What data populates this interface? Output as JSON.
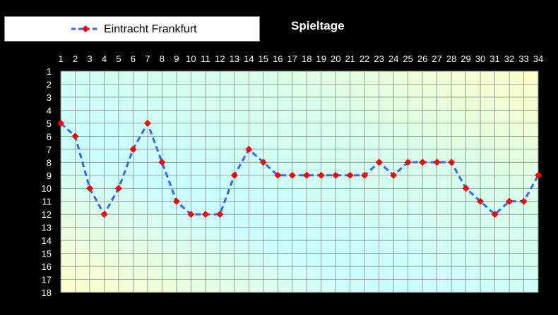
{
  "chart_data": {
    "type": "line",
    "title": "Spieltage",
    "legend_position": "top-left",
    "grid": true,
    "y_inverted": true,
    "xlim": [
      1,
      34
    ],
    "ylim": [
      1,
      18
    ],
    "x": [
      1,
      2,
      3,
      4,
      5,
      6,
      7,
      8,
      9,
      10,
      11,
      12,
      13,
      14,
      15,
      16,
      17,
      18,
      19,
      20,
      21,
      22,
      23,
      24,
      25,
      26,
      27,
      28,
      29,
      30,
      31,
      32,
      33,
      34
    ],
    "y_ticks": [
      1,
      2,
      3,
      4,
      5,
      6,
      7,
      8,
      9,
      10,
      11,
      12,
      13,
      14,
      15,
      16,
      17,
      18
    ],
    "series": [
      {
        "name": "Eintracht Frankfurt",
        "color": "#3366ff",
        "marker_color": "#ff0000",
        "values": [
          5,
          6,
          10,
          12,
          10,
          7,
          5,
          8,
          11,
          12,
          12,
          12,
          9,
          7,
          8,
          9,
          9,
          9,
          9,
          9,
          9,
          9,
          8,
          9,
          8,
          8,
          8,
          8,
          10,
          11,
          12,
          11,
          11,
          9
        ]
      }
    ]
  }
}
